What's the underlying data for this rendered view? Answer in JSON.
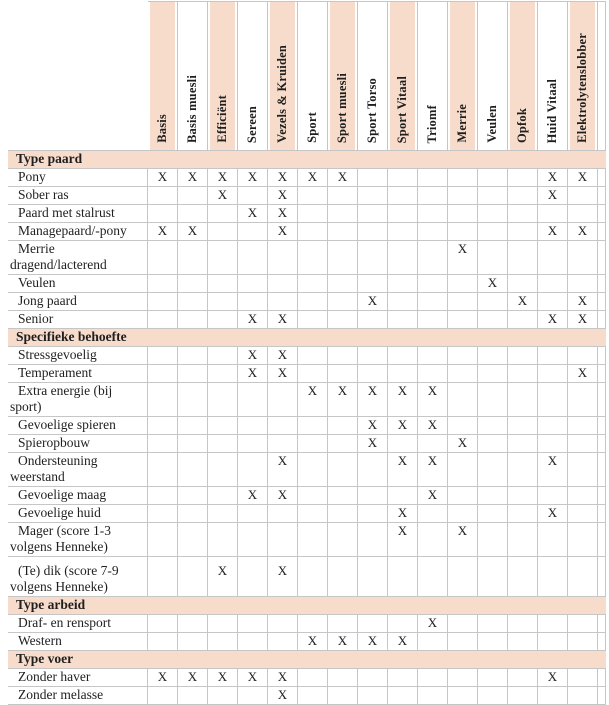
{
  "table": {
    "columns": [
      "Basis",
      "Basis muesli",
      "Efficiënt",
      "Sereen",
      "Vezels & Kruiden",
      "Sport",
      "Sport muesli",
      "Sport Torso",
      "Sport Vitaal",
      "Triomf",
      "Merrie",
      "Veulen",
      "Opfok",
      "Huid Vitaal",
      "Elektrolytenslobber"
    ],
    "mark_symbol": "X",
    "colors": {
      "stripe": "#f8dccb",
      "border": "#c6c6c6",
      "text": "#1f1f1f"
    },
    "rows": [
      {
        "type": "section",
        "label": "Type paard"
      },
      {
        "type": "data",
        "label": "Pony",
        "marks": [
          1,
          2,
          3,
          4,
          5,
          6,
          7,
          14,
          15
        ]
      },
      {
        "type": "data",
        "label": "Sober ras",
        "marks": [
          3,
          5,
          14
        ]
      },
      {
        "type": "data",
        "label": "Paard met stalrust",
        "marks": [
          4,
          5
        ]
      },
      {
        "type": "data",
        "label": "Managepaard/-pony",
        "marks": [
          1,
          2,
          5,
          14,
          15
        ]
      },
      {
        "type": "data",
        "label": "Merrie dragend/lacterend",
        "marks": [
          11
        ]
      },
      {
        "type": "data",
        "label": "Veulen",
        "marks": [
          12
        ]
      },
      {
        "type": "data",
        "label": "Jong paard",
        "marks": [
          8,
          13,
          15
        ]
      },
      {
        "type": "data",
        "label": "Senior",
        "marks": [
          4,
          5,
          14,
          15
        ]
      },
      {
        "type": "section",
        "label": "Specifieke behoefte"
      },
      {
        "type": "data",
        "label": "Stressgevoelig",
        "marks": [
          4,
          5
        ]
      },
      {
        "type": "data",
        "label": "Temperament",
        "marks": [
          4,
          5,
          15
        ]
      },
      {
        "type": "data",
        "label": "Extra energie (bij sport)",
        "marks": [
          6,
          7,
          8,
          9,
          10
        ]
      },
      {
        "type": "data",
        "label": "Gevoelige spieren",
        "marks": [
          8,
          9,
          10
        ]
      },
      {
        "type": "data",
        "label": "Spieropbouw",
        "marks": [
          8,
          11
        ]
      },
      {
        "type": "data",
        "label": "Ondersteuning weerstand",
        "marks": [
          5,
          9,
          10,
          14
        ]
      },
      {
        "type": "data",
        "label": "Gevoelige maag",
        "marks": [
          4,
          5,
          10
        ]
      },
      {
        "type": "data",
        "label": "Gevoelige huid",
        "marks": [
          9,
          14
        ]
      },
      {
        "type": "data",
        "label": "Mager (score 1-3 volgens Henneke)",
        "marks": [
          9,
          11
        ]
      },
      {
        "type": "data",
        "label": "(Te) dik (score 7-9 volgens Henneke)",
        "marks": [
          3,
          5
        ],
        "pad_top": true
      },
      {
        "type": "section",
        "label": "Type arbeid"
      },
      {
        "type": "data",
        "label": "Draf- en rensport",
        "marks": [
          10
        ]
      },
      {
        "type": "data",
        "label": "Western",
        "marks": [
          6,
          7,
          8,
          9
        ]
      },
      {
        "type": "section",
        "label": "Type voer"
      },
      {
        "type": "data",
        "label": "Zonder haver",
        "marks": [
          1,
          2,
          3,
          4,
          5,
          14
        ]
      },
      {
        "type": "data",
        "label": "Zonder melasse",
        "marks": [
          5
        ]
      }
    ]
  }
}
